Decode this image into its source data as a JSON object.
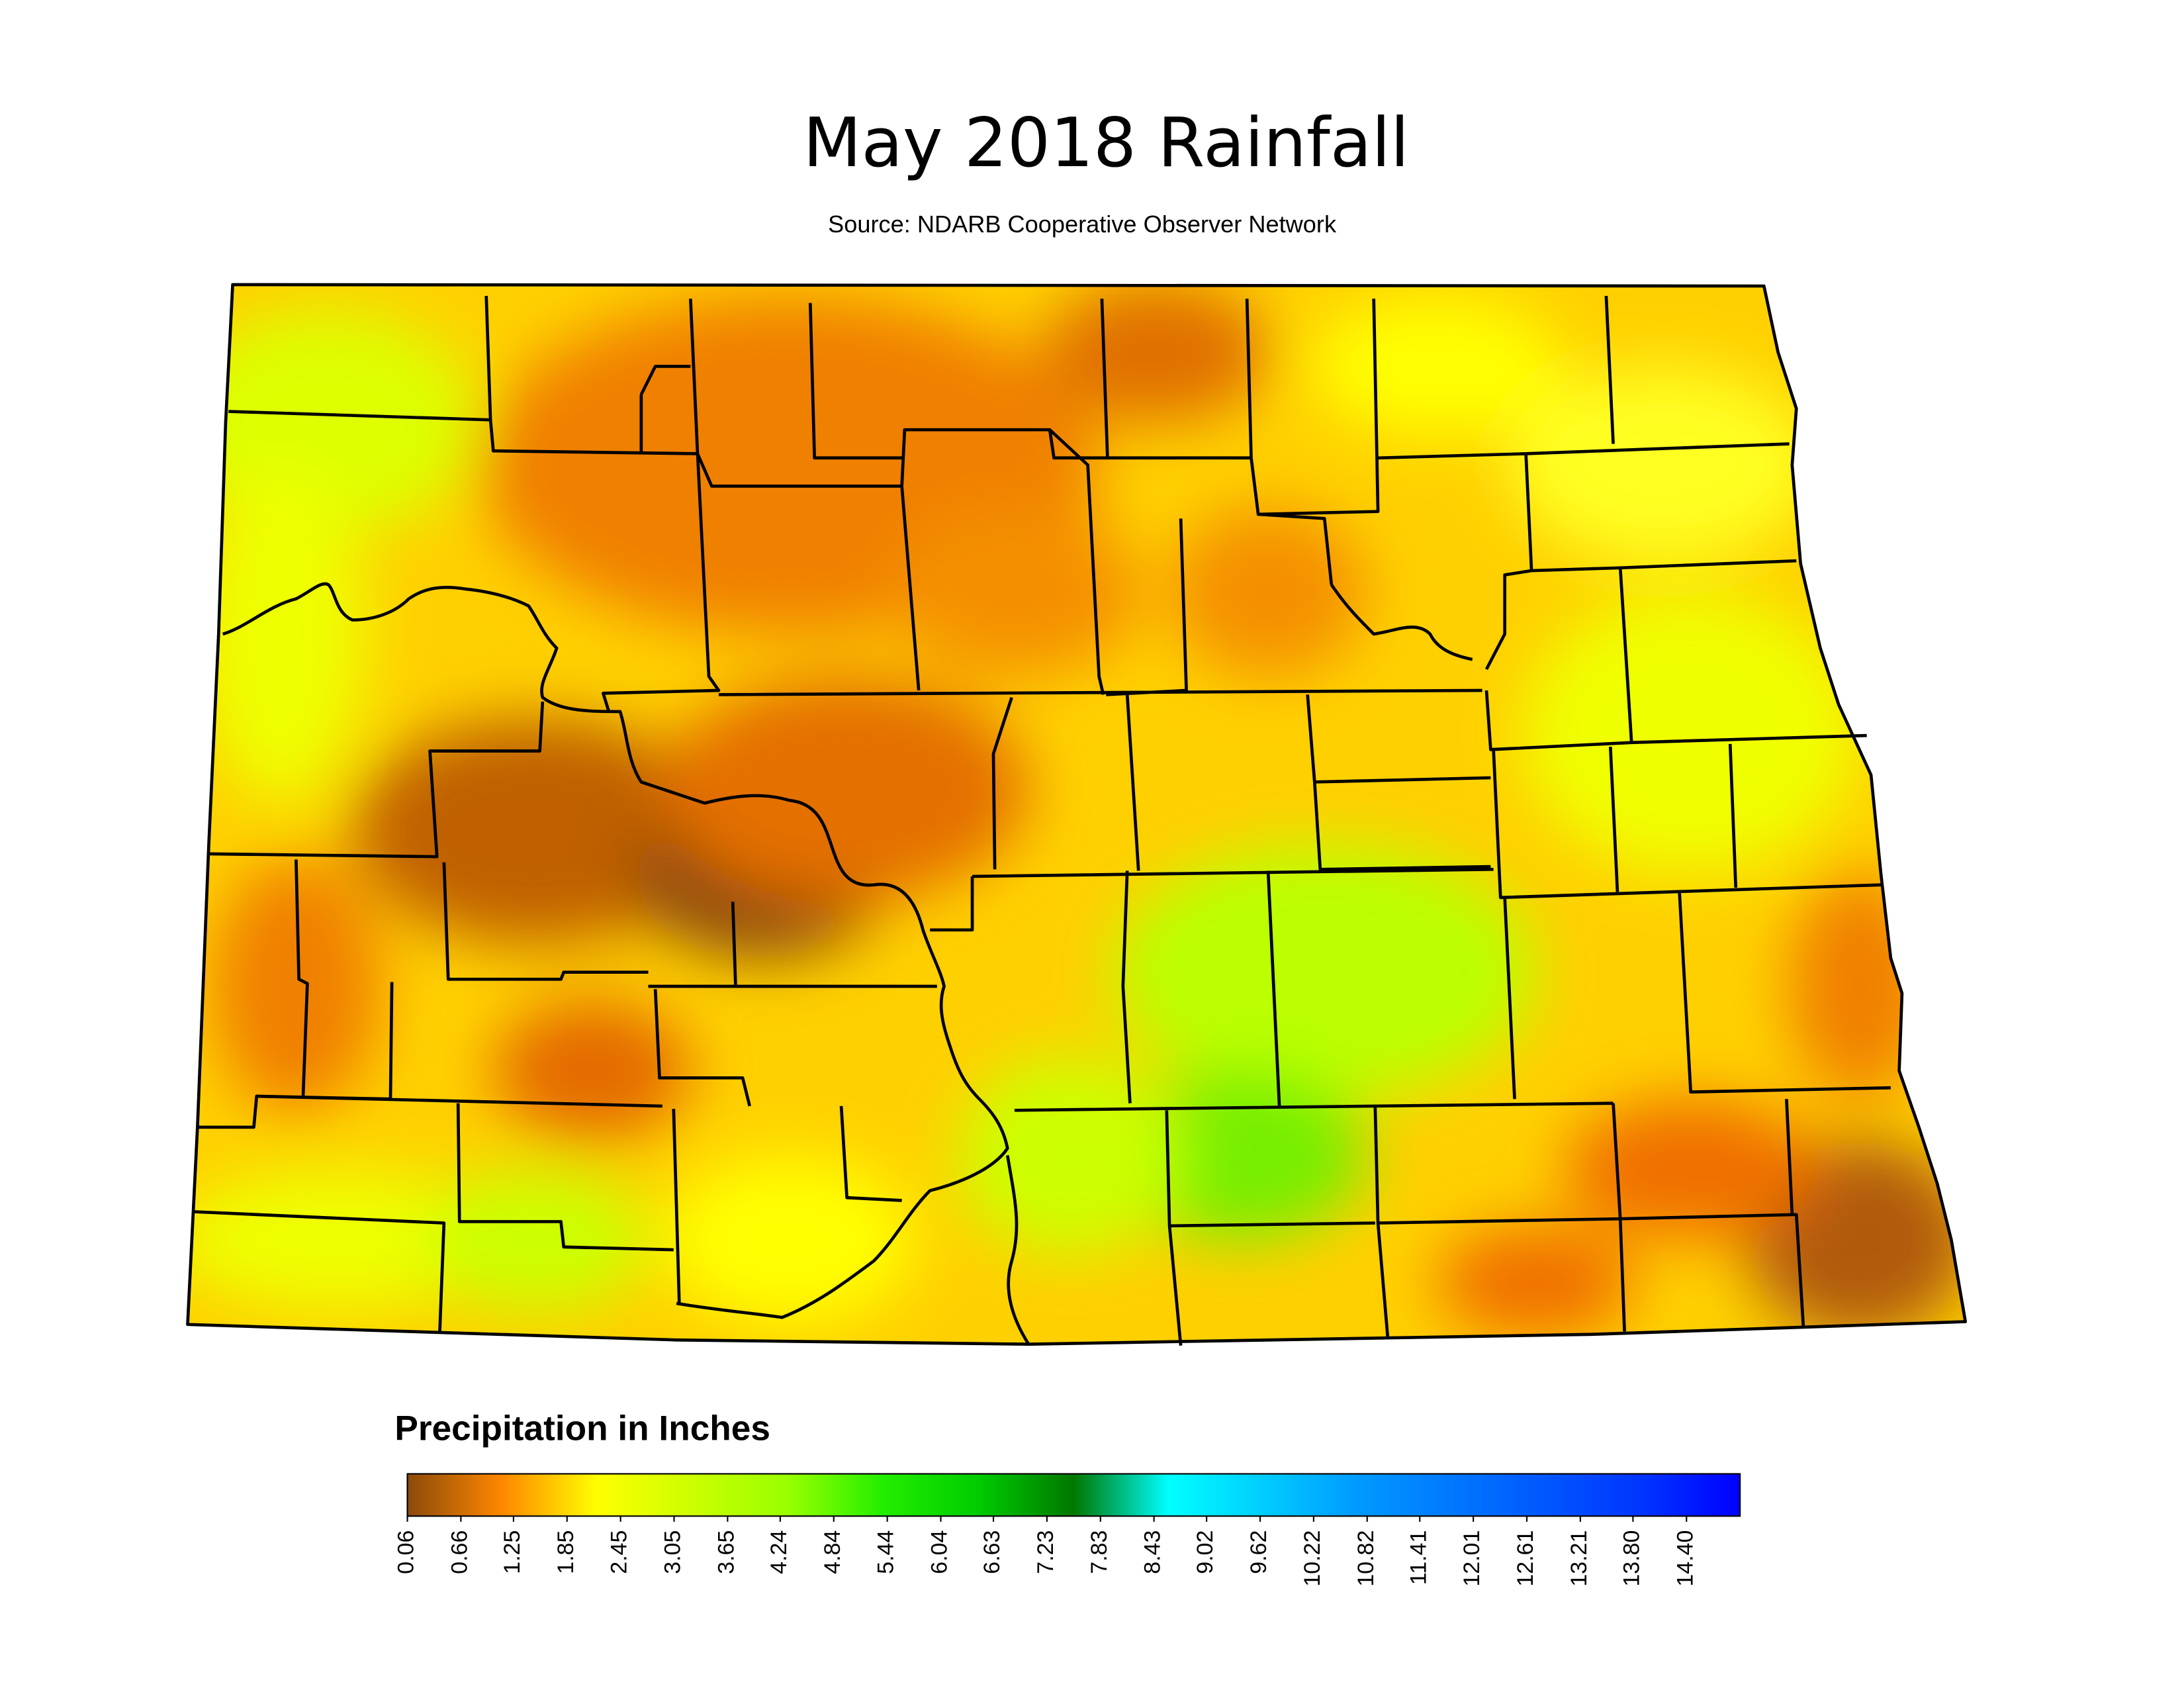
{
  "header": {
    "title": "May 2018 Rainfall",
    "source": "Source: NDARB Cooperative Observer Network"
  },
  "legend": {
    "title": "Precipitation in Inches",
    "lim": [
      0.06,
      15
    ],
    "colors": [
      "#8b4a0a",
      "#ff8800",
      "#ffff00",
      "#ccff00",
      "#99ff00",
      "#22ee00",
      "#00cc00",
      "#007700",
      "#00ffff",
      "#00ccff",
      "#0099ff",
      "#0077ff",
      "#0055ff",
      "#0033ff",
      "#0000ff"
    ],
    "ticks": [
      0.06,
      0.66,
      1.25,
      1.85,
      2.45,
      3.05,
      3.65,
      4.24,
      4.84,
      5.44,
      6.04,
      6.63,
      7.23,
      7.83,
      8.43,
      9.02,
      9.62,
      10.22,
      10.82,
      11.41,
      12.01,
      12.61,
      13.21,
      {
        "value": 13.8,
        "label": "13.80"
      },
      {
        "value": 14.4,
        "label": "14.40"
      }
    ]
  }
}
